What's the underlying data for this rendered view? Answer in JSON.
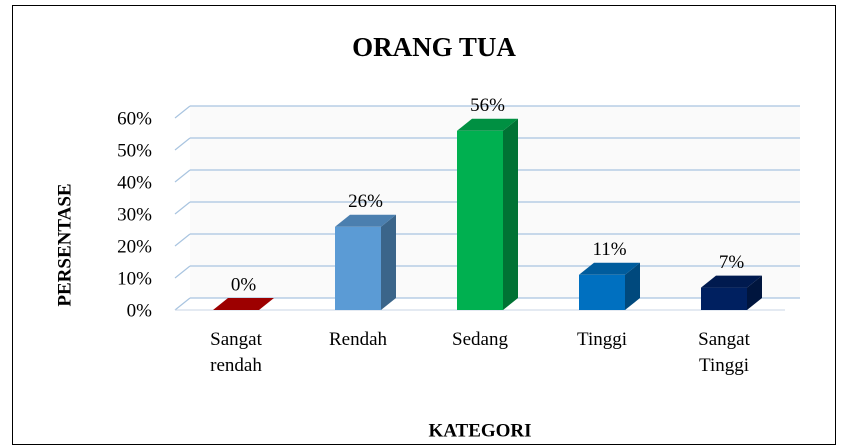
{
  "chart_data": {
    "type": "bar3d",
    "title": "ORANG TUA",
    "x_label": "KATEGORI",
    "y_label": "PERSENTASE",
    "categories": [
      "Sangat rendah",
      "Rendah",
      "Sedang",
      "Tinggi",
      "Sangat Tinggi"
    ],
    "values": [
      0,
      26,
      56,
      11,
      7
    ],
    "value_labels": [
      "0%",
      "26%",
      "56%",
      "11%",
      "7%"
    ],
    "colors": [
      "#c00000",
      "#5b9bd5",
      "#00b050",
      "#0070c0",
      "#002060"
    ],
    "ylim": [
      0,
      60
    ],
    "yticks": [
      {
        "value": 0,
        "label": "0%"
      },
      {
        "value": 10,
        "label": "10%"
      },
      {
        "value": 20,
        "label": "20%"
      },
      {
        "value": 30,
        "label": "30%"
      },
      {
        "value": 40,
        "label": "40%"
      },
      {
        "value": 50,
        "label": "50%"
      },
      {
        "value": 60,
        "label": "60%"
      }
    ],
    "grid": true
  }
}
